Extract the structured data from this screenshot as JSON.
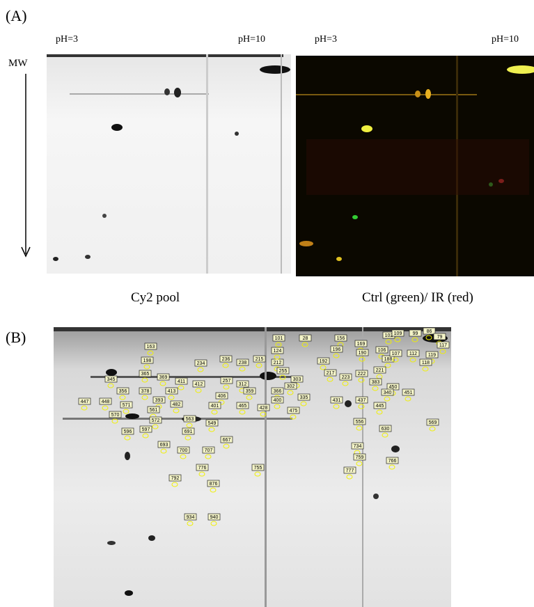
{
  "panel_a": {
    "label": "(A)",
    "mw": "MW",
    "left": {
      "ph_low": "pH=3",
      "ph_high": "pH=10",
      "caption": "Cy2 pool"
    },
    "right": {
      "ph_low": "pH=3",
      "ph_high": "pH=10",
      "caption": "Ctrl (green)/ IR (red)"
    }
  },
  "panel_b": {
    "label": "(B)",
    "spot_labels": [
      "163",
      "198",
      "365",
      "369",
      "345",
      "356",
      "378",
      "393",
      "447",
      "448",
      "571",
      "570",
      "561",
      "572",
      "596",
      "597",
      "234",
      "236",
      "238",
      "215",
      "212",
      "101",
      "124",
      "28",
      "411",
      "412",
      "413",
      "482",
      "257",
      "312",
      "359",
      "255",
      "303",
      "302",
      "366",
      "400",
      "335",
      "406",
      "401",
      "465",
      "428",
      "475",
      "563",
      "549",
      "691",
      "667",
      "693",
      "700",
      "707",
      "776",
      "792",
      "755",
      "876",
      "934",
      "940",
      "156",
      "102",
      "109",
      "99",
      "86",
      "79",
      "117",
      "169",
      "106",
      "196",
      "190",
      "188",
      "107",
      "112",
      "119",
      "192",
      "118",
      "217",
      "223",
      "222",
      "221",
      "383",
      "450",
      "340",
      "451",
      "431",
      "437",
      "445",
      "556",
      "630",
      "569",
      "734",
      "759",
      "766",
      "777"
    ]
  }
}
